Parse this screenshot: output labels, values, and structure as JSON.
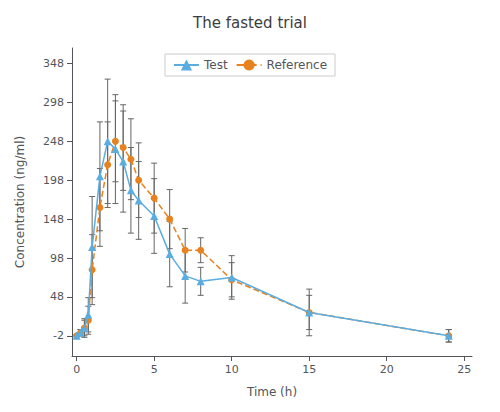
{
  "chart_data": {
    "type": "line",
    "title": "The fasted trial",
    "xlabel": "Time (h)",
    "ylabel": "Concentration (ng/ml)",
    "x": [
      0,
      0.25,
      0.5,
      0.75,
      1.0,
      1.5,
      2.0,
      2.5,
      3.0,
      3.5,
      4.0,
      5.0,
      6.0,
      7.0,
      8.0,
      10.0,
      15.0,
      24.0
    ],
    "series": [
      {
        "name": "Test",
        "color": "#5aade0",
        "marker": "triangle",
        "line_style": "solid",
        "values": [
          -2,
          2,
          8,
          25,
          112,
          203,
          248,
          238,
          222,
          185,
          172,
          152,
          103,
          75,
          68,
          73,
          28,
          -2
        ],
        "yerr": [
          1,
          4,
          12,
          22,
          65,
          70,
          80,
          70,
          65,
          55,
          50,
          48,
          42,
          35,
          18,
          28,
          22,
          8
        ]
      },
      {
        "name": "Reference",
        "color": "#e8821e",
        "marker": "circle",
        "line_style": "dashed",
        "values": [
          -2,
          2,
          8,
          18,
          83,
          163,
          218,
          248,
          240,
          225,
          198,
          175,
          148,
          108,
          108,
          70,
          28,
          -2
        ],
        "yerr": [
          1,
          4,
          10,
          18,
          45,
          50,
          55,
          52,
          55,
          52,
          48,
          45,
          38,
          28,
          16,
          22,
          30,
          8
        ]
      }
    ],
    "xlim": [
      -0.3,
      25.5
    ],
    "ylim": [
      -28,
      368
    ],
    "xticks": [
      0,
      5,
      10,
      15,
      20,
      25
    ],
    "yticks": [
      -2,
      48,
      98,
      148,
      198,
      248,
      298,
      348
    ],
    "grid": false,
    "legend": "upper center"
  }
}
